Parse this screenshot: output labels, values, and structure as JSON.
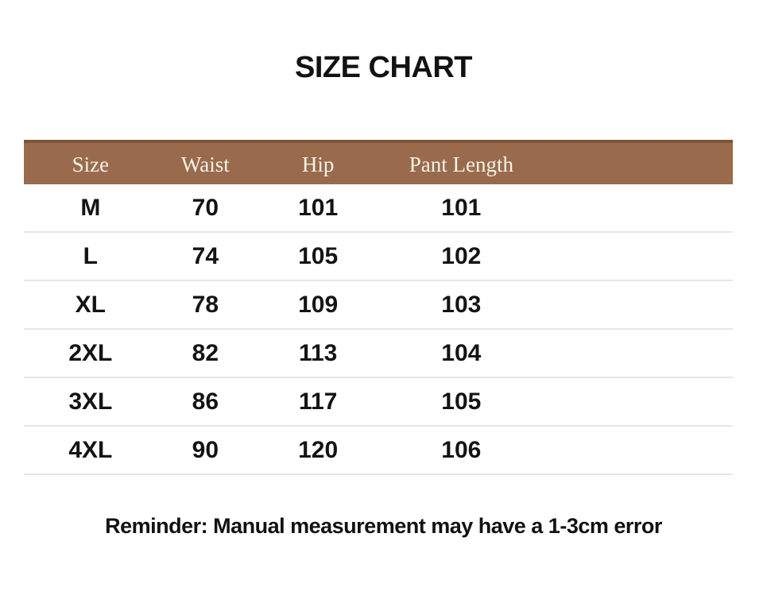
{
  "title": "SIZE CHART",
  "chart_data": {
    "type": "table",
    "title": "SIZE CHART",
    "columns": [
      "Size",
      "Waist",
      "Hip",
      "Pant Length"
    ],
    "rows": [
      [
        "M",
        "70",
        "101",
        "101"
      ],
      [
        "L",
        "74",
        "105",
        "102"
      ],
      [
        "XL",
        "78",
        "109",
        "103"
      ],
      [
        "2XL",
        "82",
        "113",
        "104"
      ],
      [
        "3XL",
        "86",
        "117",
        "105"
      ],
      [
        "4XL",
        "90",
        "120",
        "106"
      ]
    ],
    "footnote": "Reminder: Manual measurement may have a 1-3cm error"
  },
  "colors": {
    "header_bg": "#996B4C",
    "header_top_border": "#7E5538",
    "header_text": "#F8F2E8",
    "row_divider": "#E9E6E3",
    "body_text": "#141414",
    "background": "#FFFFFF"
  }
}
